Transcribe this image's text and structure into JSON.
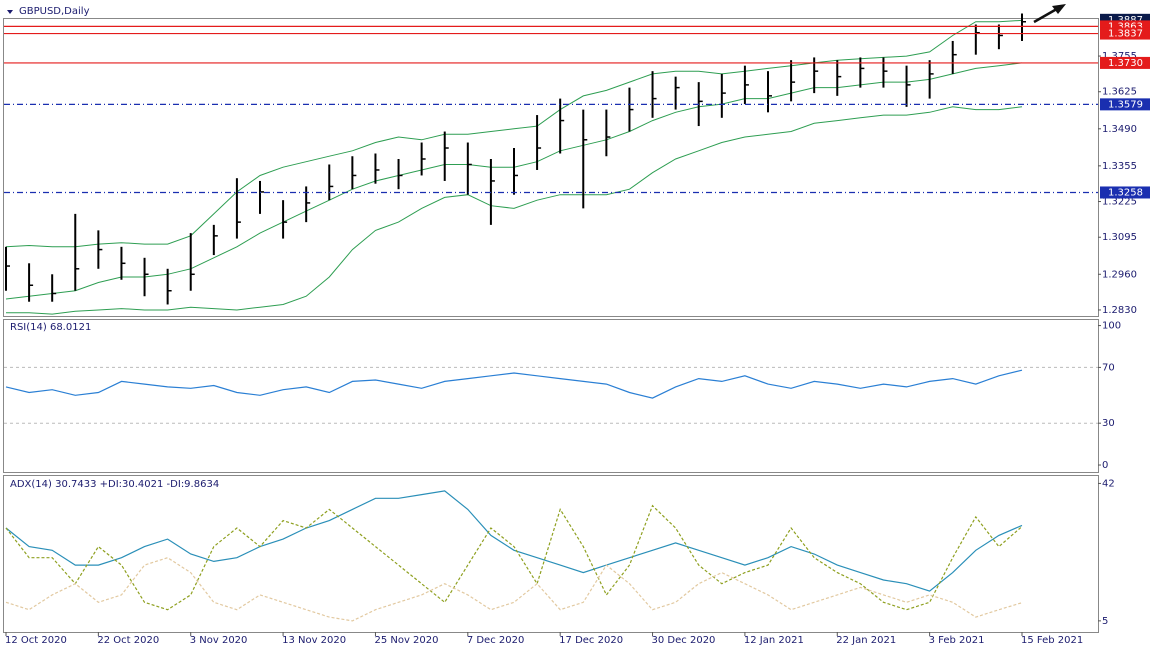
{
  "chart_data": [
    {
      "type": "ohlc",
      "title": "GBPUSD,Daily",
      "categories": [
        "12 Oct 2020",
        null,
        null,
        null,
        "22 Oct 2020",
        null,
        null,
        null,
        "3 Nov 2020",
        null,
        null,
        null,
        "13 Nov 2020",
        null,
        null,
        null,
        "25 Nov 2020",
        null,
        null,
        null,
        "7 Dec 2020",
        null,
        null,
        null,
        "17 Dec 2020",
        null,
        null,
        null,
        "30 Dec 2020",
        null,
        null,
        null,
        "12 Jan 2021",
        null,
        null,
        null,
        "22 Jan 2021",
        null,
        null,
        null,
        "3 Feb 2021",
        null,
        null,
        null,
        "15 Feb 2021"
      ],
      "close": [
        1.299,
        1.292,
        1.289,
        1.298,
        1.305,
        1.3,
        1.296,
        1.29,
        1.296,
        1.31,
        1.315,
        1.326,
        1.315,
        1.322,
        1.328,
        1.332,
        1.334,
        1.332,
        1.338,
        1.342,
        1.336,
        1.33,
        1.332,
        1.342,
        1.352,
        1.345,
        1.346,
        1.356,
        1.36,
        1.364,
        1.359,
        1.362,
        1.365,
        1.361,
        1.366,
        1.37,
        1.368,
        1.371,
        1.37,
        1.365,
        1.369,
        1.376,
        1.384,
        1.383,
        1.388
      ],
      "high": [
        1.306,
        1.3,
        1.296,
        1.318,
        1.312,
        1.306,
        1.302,
        1.298,
        1.311,
        1.314,
        1.331,
        1.33,
        1.323,
        1.328,
        1.336,
        1.339,
        1.34,
        1.338,
        1.344,
        1.348,
        1.344,
        1.338,
        1.342,
        1.354,
        1.36,
        1.356,
        1.356,
        1.364,
        1.37,
        1.368,
        1.366,
        1.369,
        1.372,
        1.37,
        1.374,
        1.375,
        1.374,
        1.375,
        1.375,
        1.372,
        1.374,
        1.381,
        1.387,
        1.387,
        1.391
      ],
      "low": [
        1.29,
        1.286,
        1.286,
        1.29,
        1.298,
        1.294,
        1.288,
        1.285,
        1.29,
        1.303,
        1.309,
        1.318,
        1.309,
        1.315,
        1.323,
        1.327,
        1.329,
        1.327,
        1.332,
        1.33,
        1.325,
        1.314,
        1.325,
        1.334,
        1.34,
        1.32,
        1.339,
        1.348,
        1.353,
        1.356,
        1.35,
        1.353,
        1.358,
        1.355,
        1.359,
        1.362,
        1.361,
        1.364,
        1.364,
        1.357,
        1.36,
        1.369,
        1.376,
        1.378,
        1.381
      ],
      "bands": [
        {
          "color": "#2e9e52",
          "values": [
            1.306,
            1.3065,
            1.306,
            1.306,
            1.307,
            1.3075,
            1.307,
            1.307,
            1.31,
            1.318,
            1.326,
            1.332,
            1.335,
            1.337,
            1.339,
            1.341,
            1.344,
            1.346,
            1.345,
            1.347,
            1.347,
            1.348,
            1.349,
            1.35,
            1.356,
            1.361,
            1.363,
            1.366,
            1.369,
            1.37,
            1.37,
            1.369,
            1.37,
            1.371,
            1.372,
            1.373,
            1.374,
            1.3745,
            1.375,
            1.3755,
            1.377,
            1.383,
            1.388,
            1.388,
            1.3885
          ]
        },
        {
          "color": "#2e9e52",
          "values": [
            1.287,
            1.288,
            1.289,
            1.29,
            1.293,
            1.295,
            1.295,
            1.296,
            1.298,
            1.302,
            1.306,
            1.311,
            1.315,
            1.319,
            1.323,
            1.327,
            1.33,
            1.332,
            1.334,
            1.336,
            1.336,
            1.335,
            1.335,
            1.337,
            1.341,
            1.343,
            1.345,
            1.348,
            1.352,
            1.355,
            1.357,
            1.358,
            1.36,
            1.36,
            1.362,
            1.364,
            1.364,
            1.365,
            1.366,
            1.366,
            1.367,
            1.369,
            1.371,
            1.372,
            1.373
          ]
        },
        {
          "color": "#2e9e52",
          "values": [
            1.282,
            1.282,
            1.2815,
            1.2825,
            1.283,
            1.2835,
            1.283,
            1.283,
            1.284,
            1.2835,
            1.283,
            1.284,
            1.285,
            1.288,
            1.295,
            1.305,
            1.312,
            1.315,
            1.32,
            1.324,
            1.325,
            1.321,
            1.32,
            1.323,
            1.325,
            1.325,
            1.325,
            1.327,
            1.333,
            1.338,
            1.341,
            1.344,
            1.346,
            1.347,
            1.348,
            1.351,
            1.352,
            1.353,
            1.354,
            1.354,
            1.355,
            1.357,
            1.356,
            1.356,
            1.357
          ]
        }
      ],
      "ylim": [
        1.2808,
        1.389
      ],
      "yticks": [
        {
          "value": 1.283,
          "label": "1.2830"
        },
        {
          "value": 1.296,
          "label": "1.2960"
        },
        {
          "value": 1.3095,
          "label": "1.3095"
        },
        {
          "value": 1.3225,
          "label": "1.3225"
        },
        {
          "value": 1.3355,
          "label": "1.3355"
        },
        {
          "value": 1.349,
          "label": "1.3490"
        },
        {
          "value": 1.3625,
          "label": "1.3625"
        },
        {
          "value": 1.3755,
          "label": "1.3755"
        }
      ],
      "levels": [
        {
          "value": 1.3887,
          "label": "1.3887",
          "color": "#0a1a4a",
          "style": "none"
        },
        {
          "value": 1.3863,
          "label": "1.3863",
          "color": "#e41b1b",
          "style": "solid"
        },
        {
          "value": 1.3837,
          "label": "1.3837",
          "color": "#e41b1b",
          "style": "solid"
        },
        {
          "value": 1.373,
          "label": "1.3730",
          "color": "#e41b1b",
          "style": "solid"
        },
        {
          "value": 1.3579,
          "label": "1.3579",
          "color": "#1a2fb0",
          "style": "dashdot"
        },
        {
          "value": 1.3258,
          "label": "1.3258",
          "color": "#1a2fb0",
          "style": "dashdot"
        }
      ]
    },
    {
      "type": "line",
      "title": "RSI(14) 68.0121",
      "series": [
        {
          "color": "#2a7fd4",
          "values": [
            56,
            52,
            54,
            50,
            52,
            60,
            58,
            56,
            55,
            57,
            52,
            50,
            54,
            56,
            52,
            60,
            61,
            58,
            55,
            60,
            62,
            64,
            66,
            64,
            62,
            60,
            58,
            52,
            48,
            56,
            62,
            60,
            64,
            58,
            55,
            60,
            58,
            55,
            58,
            56,
            60,
            62,
            58,
            64,
            68
          ]
        }
      ],
      "ylim": [
        -5,
        104
      ],
      "yticks": [
        0,
        30,
        70,
        100
      ],
      "levels": [
        30,
        70
      ]
    },
    {
      "type": "line",
      "title": "ADX(14) 30.7433 +DI:30.4021 -DI:9.8634",
      "series": [
        {
          "color": "#2a8fb8",
          "style": "solid",
          "values": [
            30,
            25,
            24,
            20,
            20,
            22,
            25,
            27,
            23,
            21,
            22,
            25,
            27,
            30,
            32,
            35,
            38,
            38,
            39,
            40,
            35,
            28,
            24,
            22,
            20,
            18,
            20,
            22,
            24,
            26,
            24,
            22,
            20,
            22,
            25,
            23,
            20,
            18,
            16,
            15,
            13,
            18,
            24,
            28,
            30.7
          ]
        },
        {
          "color": "#8fa020",
          "style": "dash",
          "values": [
            30,
            22,
            22,
            15,
            25,
            20,
            10,
            8,
            12,
            25,
            30,
            25,
            32,
            30,
            35,
            30,
            25,
            20,
            15,
            10,
            20,
            30,
            25,
            15,
            35,
            25,
            12,
            20,
            36,
            30,
            20,
            15,
            18,
            20,
            30,
            22,
            18,
            15,
            10,
            8,
            10,
            22,
            33,
            25,
            30.4
          ]
        },
        {
          "color": "#e2c9a0",
          "style": "dash",
          "values": [
            10,
            8,
            12,
            15,
            10,
            12,
            20,
            22,
            18,
            10,
            8,
            12,
            10,
            8,
            6,
            5,
            8,
            10,
            12,
            15,
            12,
            8,
            10,
            15,
            8,
            10,
            20,
            15,
            8,
            10,
            15,
            18,
            15,
            12,
            8,
            10,
            12,
            14,
            12,
            10,
            12,
            10,
            6,
            8,
            9.9
          ]
        }
      ],
      "ylim": [
        2,
        44
      ],
      "yticks": [
        5,
        42
      ]
    }
  ]
}
